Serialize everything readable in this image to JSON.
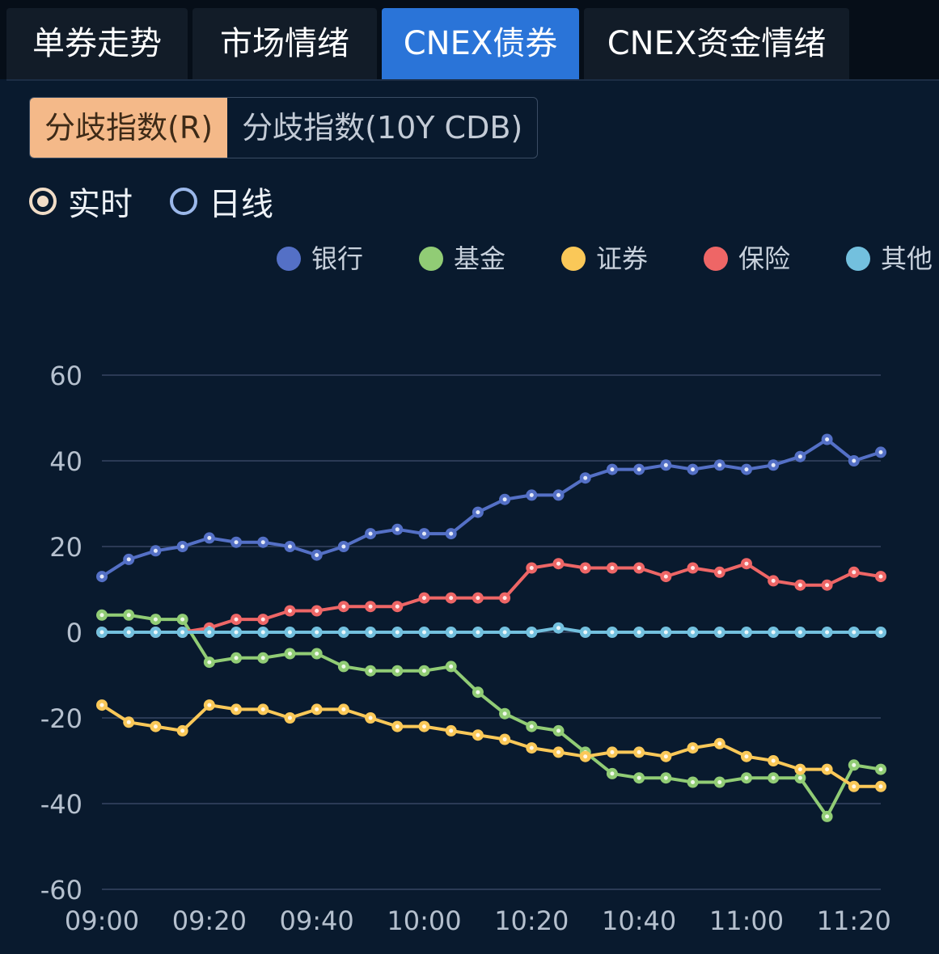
{
  "tabs": [
    {
      "label": "单券走势",
      "active": false
    },
    {
      "label": "市场情绪",
      "active": false
    },
    {
      "label": "CNEX债券",
      "active": true
    },
    {
      "label": "CNEX资金情绪",
      "active": false
    }
  ],
  "segments": [
    {
      "label": "分歧指数(R)",
      "active": true
    },
    {
      "label": "分歧指数(10Y CDB)",
      "active": false
    }
  ],
  "radios": [
    {
      "label": "实时",
      "checked": true
    },
    {
      "label": "日线",
      "checked": false
    }
  ],
  "colors": {
    "active_tab": "#2a74d8",
    "active_segment": "#f4b989",
    "background": "#091a2e"
  },
  "chart_data": {
    "type": "line",
    "title": "",
    "xlabel": "",
    "ylabel": "",
    "ylim": [
      -60,
      60
    ],
    "yticks": [
      60,
      40,
      20,
      0,
      -20,
      -40,
      -60
    ],
    "xtick_labels": [
      "09:00",
      "09:20",
      "09:40",
      "10:00",
      "10:20",
      "10:40",
      "11:00",
      "11:20"
    ],
    "x_start": "09:00",
    "x_step_minutes": 5,
    "legend_position": "top-right",
    "grid": true,
    "series": [
      {
        "name": "银行",
        "color": "#5470c6",
        "values": [
          13,
          17,
          19,
          20,
          22,
          21,
          21,
          20,
          18,
          20,
          23,
          24,
          23,
          23,
          28,
          31,
          32,
          32,
          36,
          38,
          38,
          39,
          38,
          39,
          38,
          39,
          41,
          45,
          40,
          42
        ]
      },
      {
        "name": "基金",
        "color": "#91cc75",
        "values": [
          4,
          4,
          3,
          3,
          -7,
          -6,
          -6,
          -5,
          -5,
          -8,
          -9,
          -9,
          -9,
          -8,
          -14,
          -19,
          -22,
          -23,
          -28,
          -33,
          -34,
          -34,
          -35,
          -35,
          -34,
          -34,
          -34,
          -43,
          -31,
          -32
        ]
      },
      {
        "name": "证券",
        "color": "#fac858",
        "values": [
          -17,
          -21,
          -22,
          -23,
          -17,
          -18,
          -18,
          -20,
          -18,
          -18,
          -20,
          -22,
          -22,
          -23,
          -24,
          -25,
          -27,
          -28,
          -29,
          -28,
          -28,
          -29,
          -27,
          -26,
          -29,
          -30,
          -32,
          -32,
          -36,
          -36
        ]
      },
      {
        "name": "保险",
        "color": "#ee6666",
        "values": [
          0,
          0,
          0,
          0,
          1,
          3,
          3,
          5,
          5,
          6,
          6,
          6,
          8,
          8,
          8,
          8,
          15,
          16,
          15,
          15,
          15,
          13,
          15,
          14,
          16,
          12,
          11,
          11,
          14,
          13
        ]
      },
      {
        "name": "其他",
        "color": "#73c0de",
        "values": [
          0,
          0,
          0,
          0,
          0,
          0,
          0,
          0,
          0,
          0,
          0,
          0,
          0,
          0,
          0,
          0,
          0,
          1,
          0,
          0,
          0,
          0,
          0,
          0,
          0,
          0,
          0,
          0,
          0,
          0
        ]
      }
    ]
  }
}
